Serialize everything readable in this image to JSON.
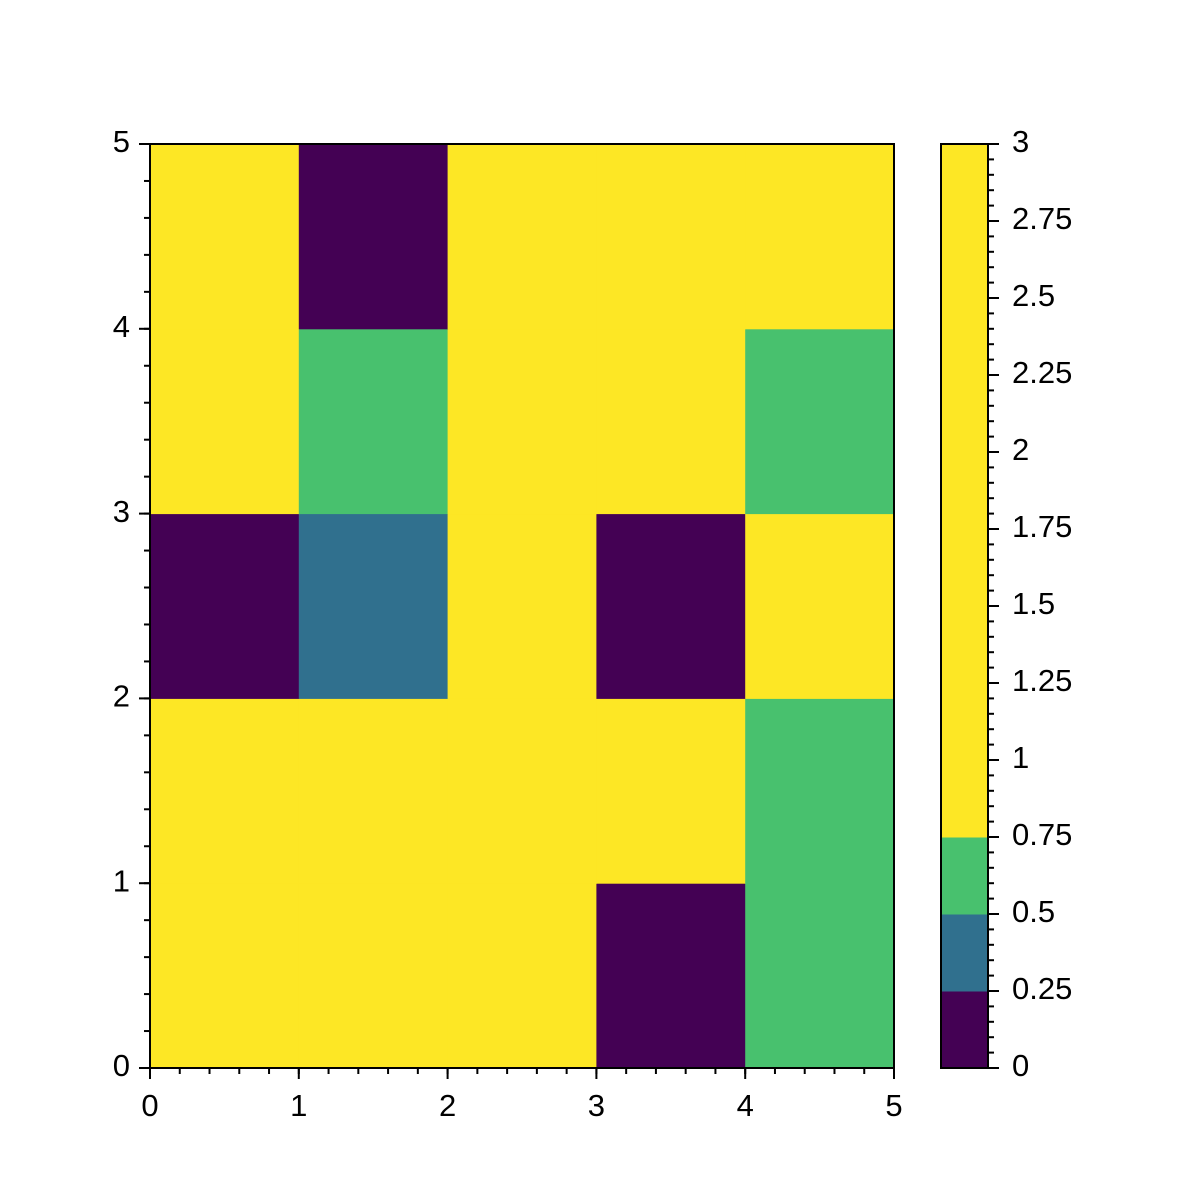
{
  "chart_data": {
    "type": "heatmap",
    "xlim": [
      0,
      5
    ],
    "ylim": [
      0,
      5
    ],
    "xticks": [
      0,
      1,
      2,
      3,
      4,
      5
    ],
    "yticks": [
      0,
      1,
      2,
      3,
      4,
      5
    ],
    "minor_tick_step": 0.2,
    "values": [
      [
        2,
        2,
        2,
        0,
        0.6
      ],
      [
        2,
        2,
        2,
        2,
        0.6
      ],
      [
        0,
        0.4,
        2,
        0,
        2
      ],
      [
        2,
        0.6,
        2,
        2,
        0.6
      ],
      [
        2,
        0,
        2,
        2,
        2
      ]
    ],
    "colorbar": {
      "lim": [
        0,
        3
      ],
      "ticks": [
        0,
        0.25,
        0.5,
        0.75,
        1,
        1.25,
        1.5,
        1.75,
        2,
        2.25,
        2.5,
        2.75,
        3
      ],
      "minor_tick_step": 0.05,
      "boundaries": [
        0,
        0.25,
        0.5,
        0.75,
        3
      ],
      "colors": [
        "#440154",
        "#30708e",
        "#48c16e",
        "#fde725"
      ]
    }
  }
}
